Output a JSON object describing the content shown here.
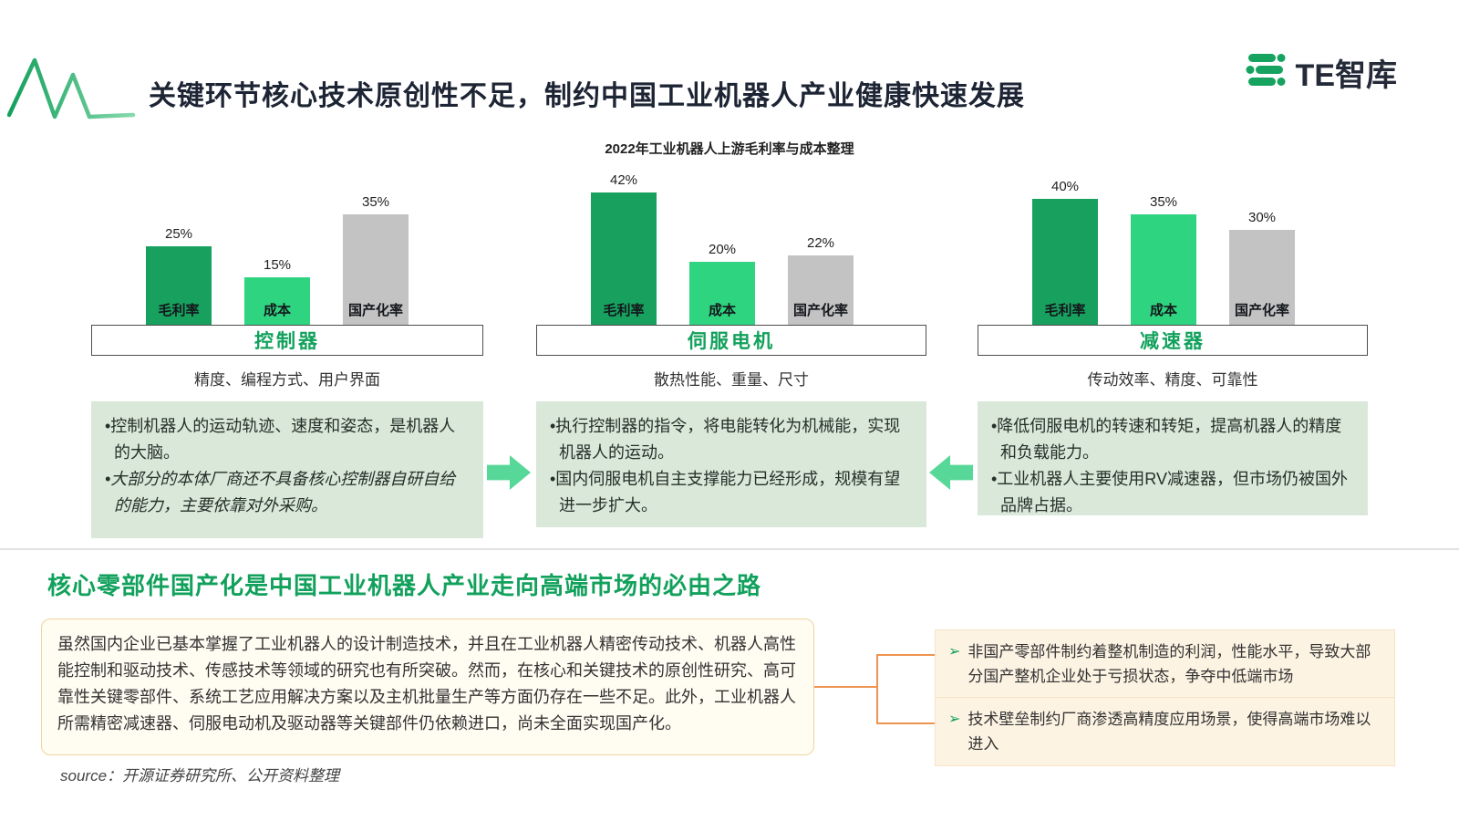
{
  "page": {
    "title": "关键环节核心技术原创性不足，制约中国工业机器人产业健康快速发展",
    "brand": "TE智库",
    "source": "source：开源证券研究所、公开资料整理"
  },
  "chart_data": {
    "type": "bar",
    "title": "2022年工业机器人上游毛利率与成本整理",
    "ylim": [
      0,
      45
    ],
    "bar_colors": {
      "毛利率": "#17a05e",
      "成本": "#2ed47f",
      "国产化率": "#c3c3c3"
    },
    "groups": [
      {
        "name": "控制器",
        "features": "精度、编程方式、用户界面",
        "bars": [
          {
            "label": "毛利率",
            "value": 25,
            "value_label": "25%"
          },
          {
            "label": "成本",
            "value": 15,
            "value_label": "15%"
          },
          {
            "label": "国产化率",
            "value": 35,
            "value_label": "35%"
          }
        ],
        "notes": [
          {
            "text": "•控制机器人的运动轨迹、速度和姿态，是机器人的大脑。",
            "italic": false
          },
          {
            "text": "•大部分的本体厂商还不具备核心控制器自研自给的能力，主要依靠对外采购。",
            "italic": true
          }
        ]
      },
      {
        "name": "伺服电机",
        "features": "散热性能、重量、尺寸",
        "bars": [
          {
            "label": "毛利率",
            "value": 42,
            "value_label": "42%"
          },
          {
            "label": "成本",
            "value": 20,
            "value_label": "20%"
          },
          {
            "label": "国产化率",
            "value": 22,
            "value_label": "22%"
          }
        ],
        "notes": [
          {
            "text": "•执行控制器的指令，将电能转化为机械能，实现机器人的运动。",
            "italic": false
          },
          {
            "text": "•国内伺服电机自主支撑能力已经形成，规模有望进一步扩大。",
            "italic": false
          }
        ]
      },
      {
        "name": "减速器",
        "features": "传动效率、精度、可靠性",
        "bars": [
          {
            "label": "毛利率",
            "value": 40,
            "value_label": "40%"
          },
          {
            "label": "成本",
            "value": 35,
            "value_label": "35%"
          },
          {
            "label": "国产化率",
            "value": 30,
            "value_label": "30%"
          }
        ],
        "notes": [
          {
            "text": "•降低伺服电机的转速和转矩，提高机器人的精度和负载能力。",
            "italic": false
          },
          {
            "text": "•工业机器人主要使用RV减速器，但市场仍被国外品牌占据。",
            "italic": false
          }
        ]
      }
    ]
  },
  "section2": {
    "title": "核心零部件国产化是中国工业机器人产业走向高端市场的必由之路",
    "summary": "虽然国内企业已基本掌握了工业机器人的设计制造技术，并且在工业机器人精密传动技术、机器人高性能控制和驱动技术、传感技术等领域的研究也有所突破。然而，在核心和关键技术的原创性研究、高可靠性关键零部件、系统工艺应用解决方案以及主机批量生产等方面仍存在一些不足。此外，工业机器人所需精密减速器、伺服电动机及驱动器等关键部件仍依赖进口，尚未全面实现国产化。",
    "points": [
      {
        "marker": "➢",
        "text": "非国产零部件制约着整机制造的利润，性能水平，导致大部分国产整机企业处于亏损状态，争夺中低端市场"
      },
      {
        "marker": "➢",
        "text": "技术壁垒制约厂商渗透高精度应用场景，使得高端市场难以进入"
      }
    ]
  },
  "accent_colors": {
    "green_dark": "#17a05e",
    "green_bright": "#2ed47f",
    "gray": "#c3c3c3",
    "arrow_green": "#58d898",
    "orange": "#ef9450",
    "title_green": "#12a15c"
  }
}
